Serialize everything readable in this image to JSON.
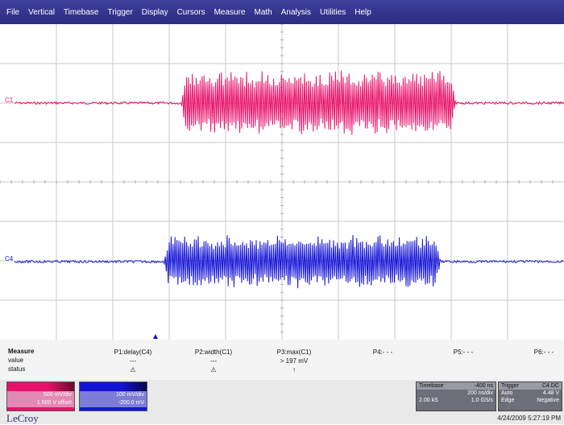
{
  "menu": [
    "File",
    "Vertical",
    "Timebase",
    "Trigger",
    "Display",
    "Cursors",
    "Measure",
    "Math",
    "Analysis",
    "Utilities",
    "Help"
  ],
  "channels": {
    "c1": {
      "label": "C1",
      "color": "#e8126a",
      "volts_div": "500 mV/div",
      "offset": "1.500 V offset"
    },
    "c4": {
      "label": "C4",
      "color": "#1414d6",
      "volts_div": "100 mV/div",
      "offset": "-200.0 mV"
    }
  },
  "measure": {
    "title": "Measure",
    "rows": [
      "value",
      "status"
    ],
    "params": [
      {
        "name": "P1:delay(C4)",
        "value": "---",
        "status": "⚠"
      },
      {
        "name": "P2:width(C1)",
        "value": "---",
        "status": "⚠"
      },
      {
        "name": "P3:max(C1)",
        "value": "> 197 mV",
        "status": "↑"
      },
      {
        "name": "P4:- - -",
        "value": "",
        "status": ""
      },
      {
        "name": "P5:- - -",
        "value": "",
        "status": ""
      },
      {
        "name": "P6:- - -",
        "value": "",
        "status": ""
      }
    ]
  },
  "timebase": {
    "title": "Timebase",
    "value": "-400 ns",
    "rate": "200 ns/div",
    "samples": "2.00 kS",
    "srate": "1.0 GS/s"
  },
  "trigger": {
    "title": "Trigger",
    "ch": "C4 DC",
    "mode": "Auto",
    "level": "4.48 V",
    "type": "Edge",
    "slope": "Negative"
  },
  "logo": "LeCroy",
  "datetime": "4/24/2009 5:27:19 PM"
}
